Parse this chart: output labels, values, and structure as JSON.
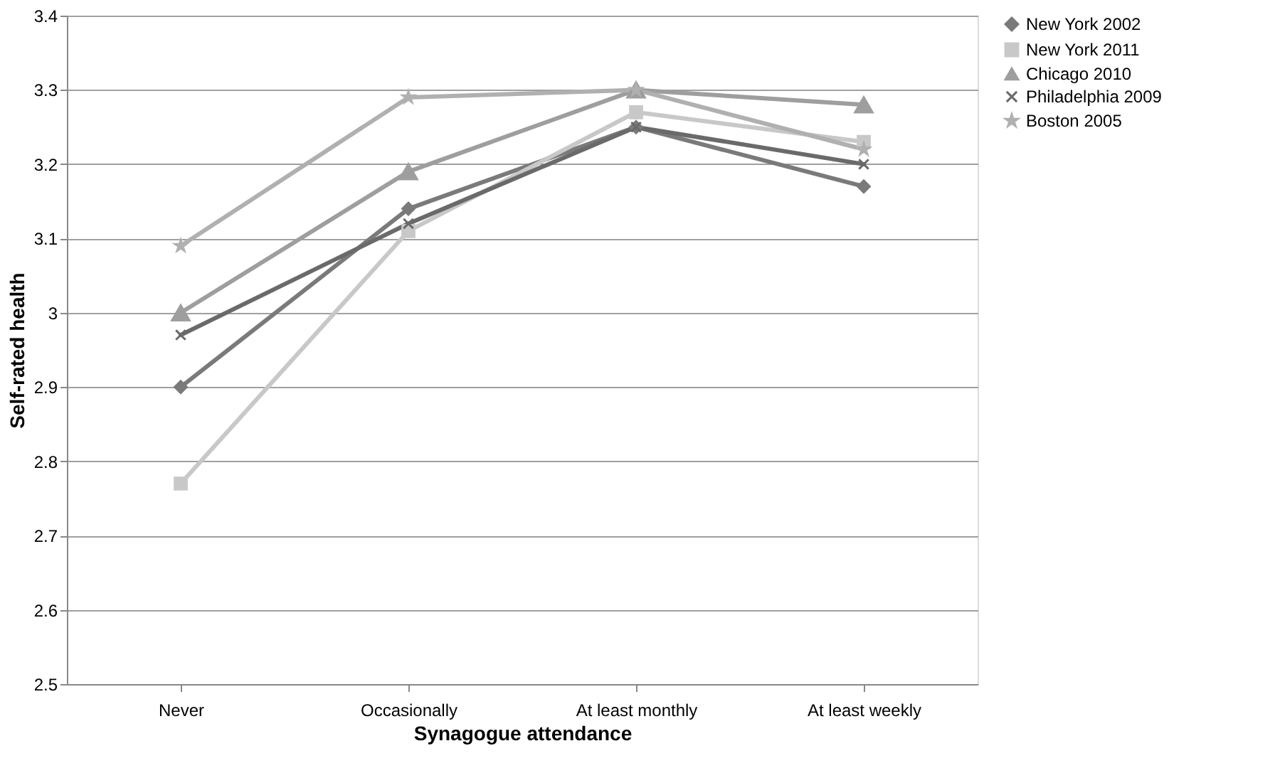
{
  "chart_data": {
    "type": "line",
    "xlabel": "Synagogue attendance",
    "ylabel": "Self-rated health",
    "categories": [
      "Never",
      "Occasionally",
      "At least monthly",
      "At least weekly"
    ],
    "series": [
      {
        "name": "New York 2002",
        "color": "#7a7a7a",
        "marker": "diamond",
        "values": [
          2.9,
          3.14,
          3.25,
          3.17
        ]
      },
      {
        "name": "New York 2011",
        "color": "#c8c8c8",
        "marker": "square",
        "values": [
          2.77,
          3.11,
          3.27,
          3.23
        ]
      },
      {
        "name": "Chicago 2010",
        "color": "#9e9e9e",
        "marker": "triangle",
        "values": [
          3.0,
          3.19,
          3.3,
          3.28
        ]
      },
      {
        "name": "Philadelphia 2009",
        "color": "#6a6a6a",
        "marker": "cross",
        "values": [
          2.97,
          3.12,
          3.25,
          3.2
        ]
      },
      {
        "name": "Boston 2005",
        "color": "#b0b0b0",
        "marker": "star",
        "values": [
          3.09,
          3.29,
          3.3,
          3.22
        ]
      }
    ],
    "ylim": [
      2.5,
      3.4
    ],
    "yticks": [
      2.5,
      2.6,
      2.7,
      2.8,
      2.9,
      3,
      3.1,
      3.2,
      3.3,
      3.4
    ],
    "grid": "y",
    "legend": "right",
    "line_style": "solid"
  }
}
